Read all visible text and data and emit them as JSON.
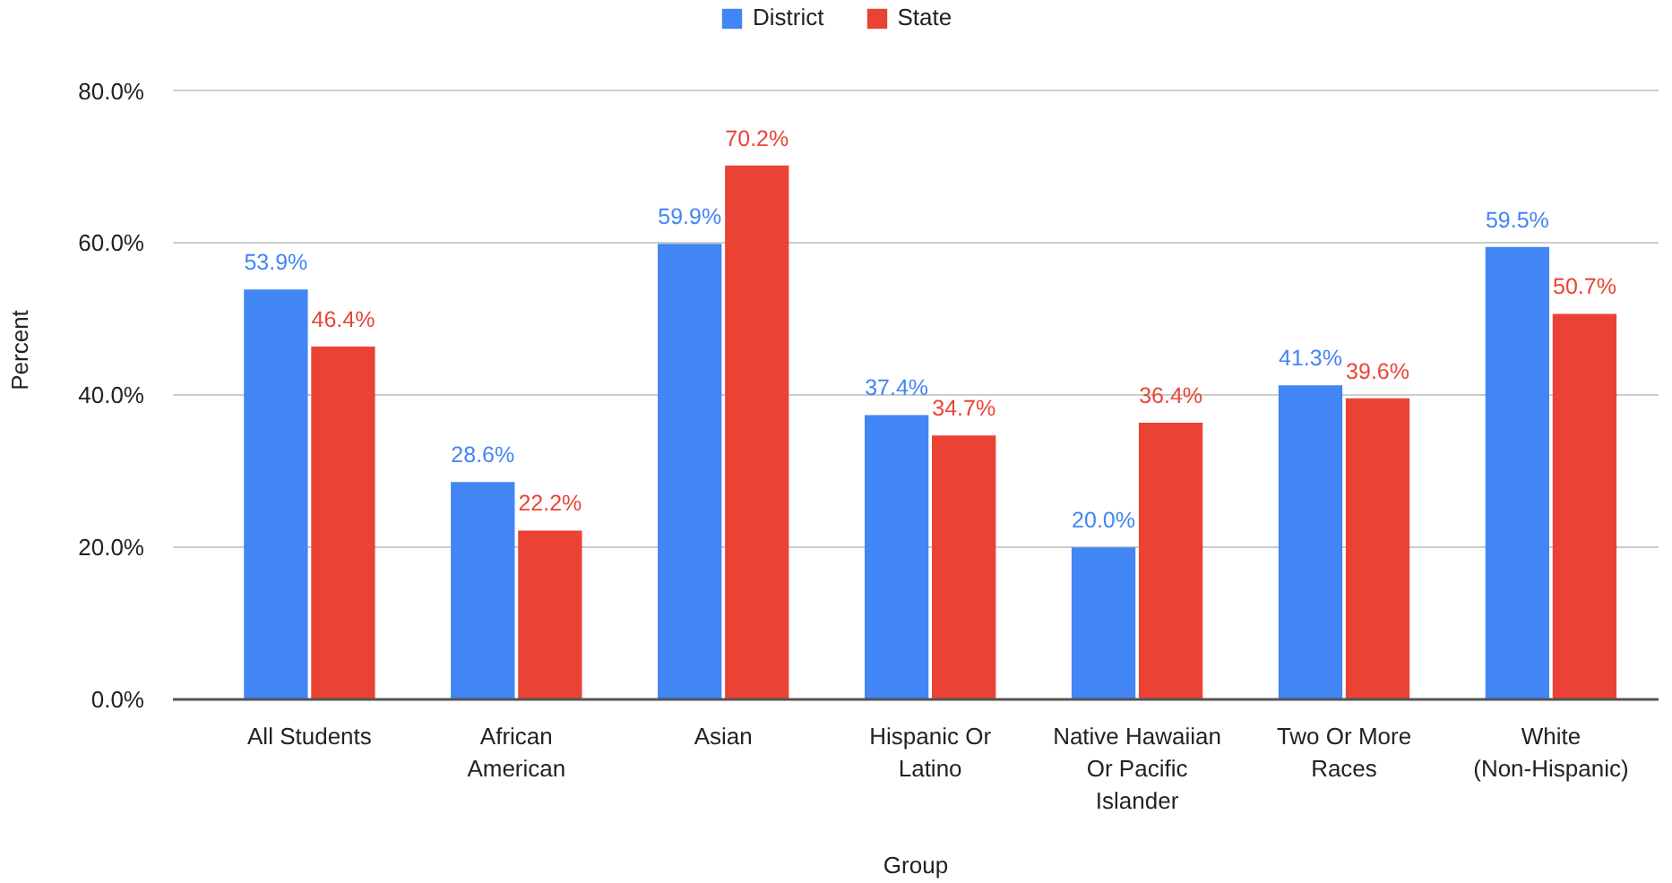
{
  "chart_data": {
    "type": "bar",
    "xlabel": "Group",
    "ylabel": "Percent",
    "categories": [
      "All Students",
      "African American",
      "Asian",
      "Hispanic Or Latino",
      "Native Hawaiian Or Pacific Islander",
      "Two Or More Races",
      "White (Non-Hispanic)"
    ],
    "series": [
      {
        "name": "District",
        "color": "#4285f4",
        "values": [
          53.9,
          28.6,
          59.9,
          37.4,
          20.0,
          41.3,
          59.5
        ],
        "value_labels": [
          "53.9%",
          "28.6%",
          "59.9%",
          "37.4%",
          "20.0%",
          "41.3%",
          "59.5%"
        ]
      },
      {
        "name": "State",
        "color": "#ea4335",
        "values": [
          46.4,
          22.2,
          70.2,
          34.7,
          36.4,
          39.6,
          50.7
        ],
        "value_labels": [
          "46.4%",
          "22.2%",
          "70.2%",
          "34.7%",
          "36.4%",
          "39.6%",
          "50.7%"
        ]
      }
    ],
    "ylim": [
      0,
      80
    ],
    "yticks": [
      {
        "value": 0,
        "label": "0.0%"
      },
      {
        "value": 20,
        "label": "20.0%"
      },
      {
        "value": 40,
        "label": "40.0%"
      },
      {
        "value": 60,
        "label": "60.0%"
      },
      {
        "value": 80,
        "label": "80.0%"
      }
    ],
    "grid": "y",
    "legend": "top"
  }
}
